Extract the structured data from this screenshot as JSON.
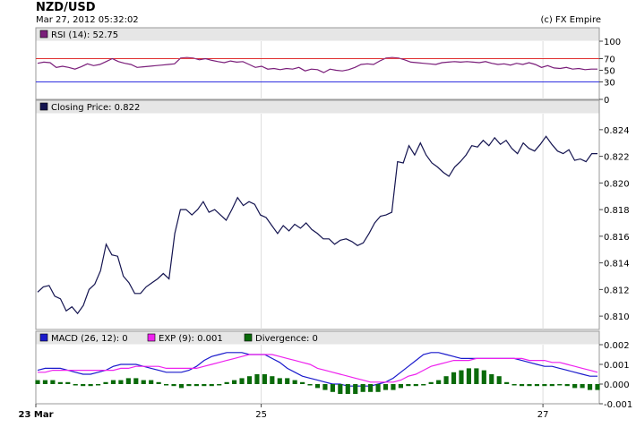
{
  "header": {
    "title": "NZD/USD",
    "datetime": "Mar 27, 2012 05:32:02",
    "copyright": "(c) FX Empire"
  },
  "chart_data": [
    {
      "type": "line",
      "panel": "rsi",
      "legend": "RSI (14): 52.75",
      "ylim": [
        0,
        100
      ],
      "yticks": [
        "100",
        "70",
        "50",
        "30",
        "0"
      ],
      "ytick_values": [
        100,
        70,
        50,
        30,
        0
      ],
      "reference_lines": [
        {
          "value": 70,
          "label": "70",
          "color": "#e03030"
        },
        {
          "value": 30,
          "label": "30",
          "color": "#3030e0"
        }
      ],
      "series": [
        {
          "color": "#7a1e7a",
          "values": [
            62,
            64,
            63,
            55,
            57,
            55,
            52,
            56,
            61,
            58,
            60,
            65,
            70,
            65,
            62,
            60,
            55,
            56,
            57,
            58,
            59,
            60,
            61,
            71,
            72,
            71,
            68,
            70,
            67,
            65,
            63,
            66,
            64,
            65,
            60,
            55,
            57,
            52,
            53,
            51,
            53,
            52,
            55,
            49,
            52,
            51,
            46,
            52,
            50,
            49,
            51,
            55,
            60,
            61,
            60,
            66,
            71,
            72,
            71,
            68,
            64,
            63,
            62,
            61,
            60,
            63,
            64,
            65,
            64,
            65,
            64,
            63,
            65,
            62,
            60,
            61,
            59,
            62,
            60,
            63,
            60,
            55,
            58,
            54,
            53,
            55,
            52,
            53,
            51,
            52,
            52
          ]
        }
      ]
    },
    {
      "type": "line",
      "panel": "price",
      "legend": "Closing Price: 0.822",
      "ylim": [
        0.809,
        0.8252
      ],
      "yticks": [
        "0.824",
        "0.822",
        "0.820",
        "0.818",
        "0.816",
        "0.814",
        "0.812",
        "0.810"
      ],
      "ytick_values": [
        0.824,
        0.822,
        0.82,
        0.818,
        0.816,
        0.814,
        0.812,
        0.81
      ],
      "series": [
        {
          "color": "#141450",
          "values": [
            0.8118,
            0.8122,
            0.8123,
            0.8115,
            0.8113,
            0.8104,
            0.8107,
            0.8102,
            0.8108,
            0.812,
            0.8124,
            0.8134,
            0.8154,
            0.8146,
            0.8145,
            0.813,
            0.8125,
            0.8117,
            0.8117,
            0.8122,
            0.8125,
            0.8128,
            0.8132,
            0.8128,
            0.8162,
            0.818,
            0.818,
            0.8176,
            0.818,
            0.8186,
            0.8178,
            0.818,
            0.8176,
            0.8172,
            0.818,
            0.8189,
            0.8183,
            0.8186,
            0.8184,
            0.8176,
            0.8174,
            0.8168,
            0.8162,
            0.8168,
            0.8164,
            0.8169,
            0.8166,
            0.817,
            0.8165,
            0.8162,
            0.8158,
            0.8158,
            0.8154,
            0.8157,
            0.8158,
            0.8156,
            0.8153,
            0.8155,
            0.8162,
            0.817,
            0.8175,
            0.8176,
            0.8178,
            0.8216,
            0.8215,
            0.8228,
            0.8221,
            0.823,
            0.8221,
            0.8215,
            0.8212,
            0.8208,
            0.8205,
            0.8212,
            0.8216,
            0.8221,
            0.8228,
            0.8227,
            0.8232,
            0.8228,
            0.8234,
            0.8229,
            0.8232,
            0.8226,
            0.8222,
            0.823,
            0.8226,
            0.8224,
            0.8229,
            0.8235,
            0.8229,
            0.8224,
            0.8222,
            0.8225,
            0.8217,
            0.8218,
            0.8216,
            0.8222,
            0.8222
          ]
        }
      ]
    },
    {
      "type": "line",
      "panel": "macd",
      "ylim": [
        -0.001,
        0.002
      ],
      "yticks": [
        "0.002",
        "0.001",
        "0.000",
        "-0.001"
      ],
      "ytick_values": [
        0.002,
        0.001,
        0.0,
        -0.001
      ],
      "legend_items": [
        {
          "label": "MACD (26, 12): 0",
          "color": "#1a1acc"
        },
        {
          "label": "EXP (9): 0.001",
          "color": "#ee22ee"
        },
        {
          "label": "Divergence: 0",
          "color": "#0a6a0a"
        }
      ],
      "series": [
        {
          "name": "MACD",
          "color": "#1a1acc",
          "values": [
            0.0007,
            0.0008,
            0.0008,
            0.0008,
            0.0007,
            0.0006,
            0.0005,
            0.0005,
            0.0006,
            0.0007,
            0.0009,
            0.001,
            0.001,
            0.001,
            0.0009,
            0.0008,
            0.0007,
            0.0006,
            0.0006,
            0.0006,
            0.0007,
            0.0009,
            0.0012,
            0.0014,
            0.0015,
            0.0016,
            0.0016,
            0.0016,
            0.0015,
            0.0015,
            0.0015,
            0.0013,
            0.0011,
            0.0008,
            0.0006,
            0.0004,
            0.0003,
            0.0002,
            0.0001,
            0.0,
            0.0,
            -0.0001,
            -0.0001,
            -0.0001,
            -0.0001,
            0.0,
            0.0001,
            0.0003,
            0.0006,
            0.0009,
            0.0012,
            0.0015,
            0.0016,
            0.0016,
            0.0015,
            0.0014,
            0.0013,
            0.0013,
            0.0013,
            0.0013,
            0.0013,
            0.0013,
            0.0013,
            0.0013,
            0.0012,
            0.0011,
            0.001,
            0.0009,
            0.0009,
            0.0008,
            0.0007,
            0.0006,
            0.0005,
            0.0004,
            0.0004
          ]
        },
        {
          "name": "EXP",
          "color": "#ee22ee",
          "values": [
            0.0006,
            0.0006,
            0.0007,
            0.0007,
            0.0007,
            0.0007,
            0.0007,
            0.0007,
            0.0007,
            0.0007,
            0.0007,
            0.0008,
            0.0008,
            0.0009,
            0.0009,
            0.0009,
            0.0009,
            0.0008,
            0.0008,
            0.0008,
            0.0008,
            0.0008,
            0.0009,
            0.001,
            0.0011,
            0.0012,
            0.0013,
            0.0014,
            0.0015,
            0.0015,
            0.0015,
            0.0015,
            0.0014,
            0.0013,
            0.0012,
            0.0011,
            0.001,
            0.0008,
            0.0007,
            0.0006,
            0.0005,
            0.0004,
            0.0003,
            0.0002,
            0.0001,
            0.0001,
            0.0001,
            0.0001,
            0.0002,
            0.0004,
            0.0005,
            0.0007,
            0.0009,
            0.001,
            0.0011,
            0.0012,
            0.0012,
            0.0012,
            0.0013,
            0.0013,
            0.0013,
            0.0013,
            0.0013,
            0.0013,
            0.0013,
            0.0012,
            0.0012,
            0.0012,
            0.0011,
            0.0011,
            0.001,
            0.0009,
            0.0008,
            0.0007,
            0.0006
          ]
        },
        {
          "name": "Divergence",
          "color": "#0a6a0a",
          "type": "bar",
          "values": [
            0.0002,
            0.0002,
            0.0002,
            0.0001,
            0.0001,
            0.0,
            -0.0001,
            -0.0001,
            0.0,
            0.0001,
            0.0002,
            0.0002,
            0.0003,
            0.0003,
            0.0002,
            0.0002,
            0.0001,
            0.0,
            -0.0001,
            -0.0002,
            -0.0001,
            -0.0001,
            -0.0001,
            -0.0001,
            0.0,
            0.0001,
            0.0002,
            0.0003,
            0.0004,
            0.0005,
            0.0005,
            0.0004,
            0.0003,
            0.0003,
            0.0002,
            0.0001,
            0.0,
            -0.0002,
            -0.0003,
            -0.0004,
            -0.0005,
            -0.0005,
            -0.0005,
            -0.0004,
            -0.0004,
            -0.0004,
            -0.0003,
            -0.0003,
            -0.0002,
            -0.0001,
            -0.0001,
            0.0,
            0.0001,
            0.0002,
            0.0004,
            0.0006,
            0.0007,
            0.0008,
            0.0008,
            0.0007,
            0.0005,
            0.0004,
            0.0001,
            0.0,
            -0.0001,
            -0.0001,
            -0.0001,
            -0.0001,
            -0.0001,
            0.0,
            -0.0001,
            -0.0002,
            -0.0002,
            -0.0003,
            -0.0003
          ]
        }
      ]
    }
  ],
  "x_axis": {
    "labels": [
      "23 Mar",
      "25",
      "27"
    ],
    "positions": [
      0,
      0.4,
      0.9
    ]
  }
}
